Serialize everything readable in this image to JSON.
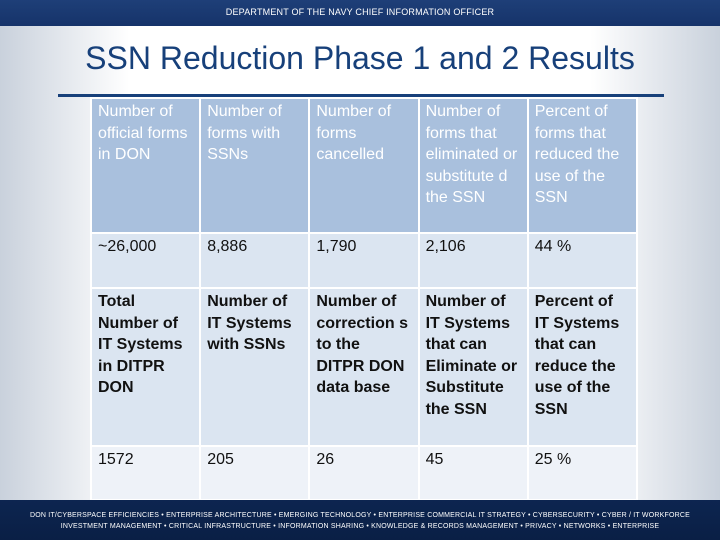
{
  "header": {
    "text": "DEPARTMENT OF THE NAVY CHIEF INFORMATION OFFICER"
  },
  "slide": {
    "title": "SSN Reduction Phase 1 and 2 Results"
  },
  "table": {
    "header_row_1": [
      "Number of official forms in DON",
      "Number of forms with SSNs",
      "Number of forms cancelled",
      "Number of forms that eliminated or substitute d the SSN",
      "Percent of forms that reduced the use of the SSN"
    ],
    "data_row_1": [
      "~26,000",
      "8,886",
      "1,790",
      "2,106",
      "44 %"
    ],
    "header_row_2": [
      "Total Number of IT Systems in DITPR DON",
      "Number of IT Systems with SSNs",
      "Number of correction s to the DITPR DON data base",
      "Number of IT Systems that can Eliminate or Substitute the SSN",
      "Percent of IT Systems that can reduce the use of the SSN"
    ],
    "data_row_2": [
      "1572",
      "205",
      "26",
      "45",
      "25 %"
    ]
  },
  "footer": {
    "line1": "DON IT/CYBERSPACE EFFICIENCIES • ENTERPRISE ARCHITECTURE • EMERGING TECHNOLOGY • ENTERPRISE COMMERCIAL IT STRATEGY • CYBERSECURITY • CYBER / IT WORKFORCE",
    "line2": "INVESTMENT MANAGEMENT • CRITICAL INFRASTRUCTURE • INFORMATION SHARING • KNOWLEDGE & RECORDS MANAGEMENT • PRIVACY • NETWORKS • ENTERPRISE"
  },
  "colors": {
    "band": "#0f2a55",
    "title": "#17407a",
    "table_header": "#a9c0dd",
    "table_light": "#dbe5f1"
  }
}
